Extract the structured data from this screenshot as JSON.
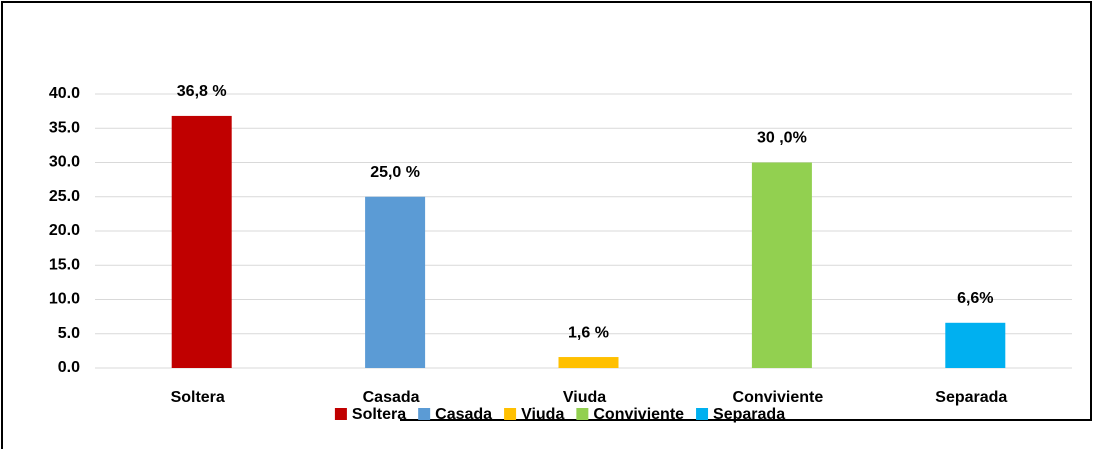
{
  "chart_data": {
    "type": "bar",
    "categories": [
      "Soltera",
      "Casada",
      "Viuda",
      "Conviviente",
      "Separada"
    ],
    "values": [
      36.8,
      25.0,
      1.6,
      30.0,
      6.6
    ],
    "value_labels": [
      "36,8 %",
      "25,0 %",
      "1,6 %",
      "30 ,0%",
      "6,6%"
    ],
    "colors": [
      "#c00000",
      "#5b9bd5",
      "#ffc000",
      "#92d050",
      "#00b0f0"
    ],
    "ylim": [
      0,
      40
    ],
    "yticks": [
      {
        "value": 0,
        "label": "0.0"
      },
      {
        "value": 5,
        "label": "5.0"
      },
      {
        "value": 10,
        "label": "10.0"
      },
      {
        "value": 15,
        "label": "15.0"
      },
      {
        "value": 20,
        "label": "20.0"
      },
      {
        "value": 25,
        "label": "25.0"
      },
      {
        "value": 30,
        "label": "30.0"
      },
      {
        "value": 35,
        "label": "35.0"
      },
      {
        "value": 40,
        "label": "40.0"
      }
    ],
    "grid": true,
    "legend": "bottom"
  }
}
